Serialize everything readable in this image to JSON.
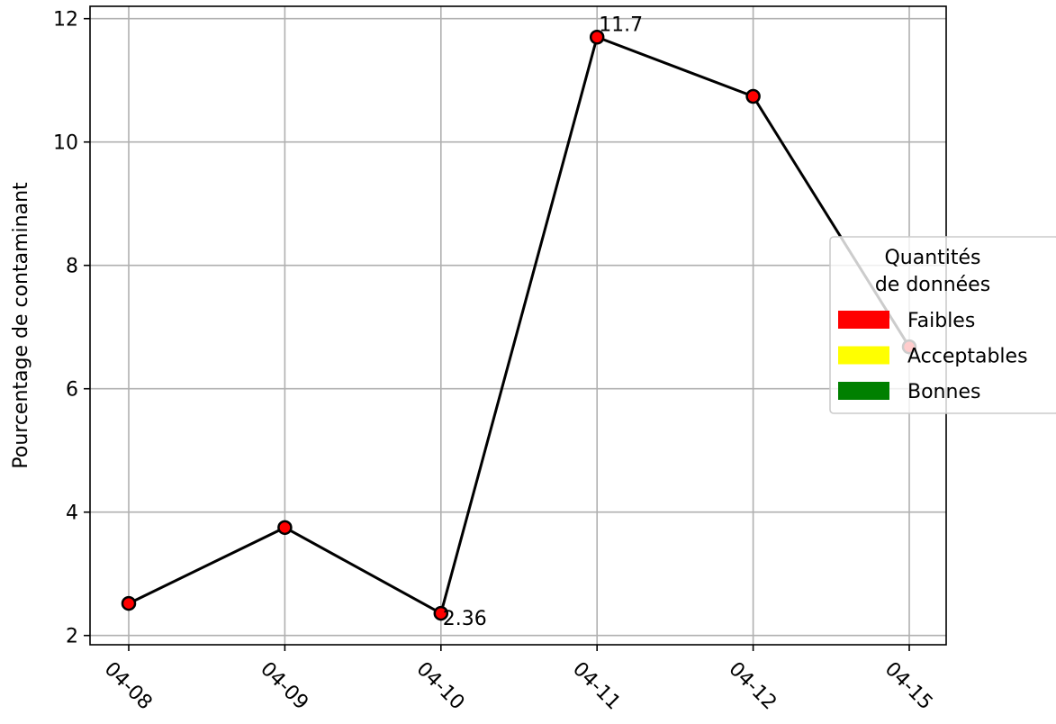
{
  "chart_data": {
    "type": "line",
    "title": "",
    "xlabel": "",
    "ylabel": "Pourcentage de contaminant",
    "categories": [
      "04-08",
      "04-09",
      "04-10",
      "04-11",
      "04-12",
      "04-15"
    ],
    "series": [
      {
        "values": [
          2.52,
          3.75,
          2.36,
          11.7,
          10.74,
          6.68
        ],
        "line_color": "#000000",
        "marker_colors": [
          "#ff0000",
          "#ff0000",
          "#ff0000",
          "#ff0000",
          "#ff0000",
          "#ff0000"
        ]
      }
    ],
    "data_labels": [
      {
        "index": 2,
        "text": "2.36"
      },
      {
        "index": 3,
        "text": "11.7"
      }
    ],
    "ylim": [
      1.85,
      12.2
    ],
    "yticks": [
      2,
      4,
      6,
      8,
      10,
      12
    ],
    "xtick_rotation": -45,
    "grid": true,
    "legend": {
      "placement": "right",
      "title": "Quantités\nde données",
      "title_lines": [
        "Quantités",
        "de données"
      ],
      "items": [
        {
          "label": "Faibles",
          "color": "#ff0000"
        },
        {
          "label": "Acceptables",
          "color": "#ffff00"
        },
        {
          "label": "Bonnes",
          "color": "#008000"
        }
      ]
    }
  }
}
